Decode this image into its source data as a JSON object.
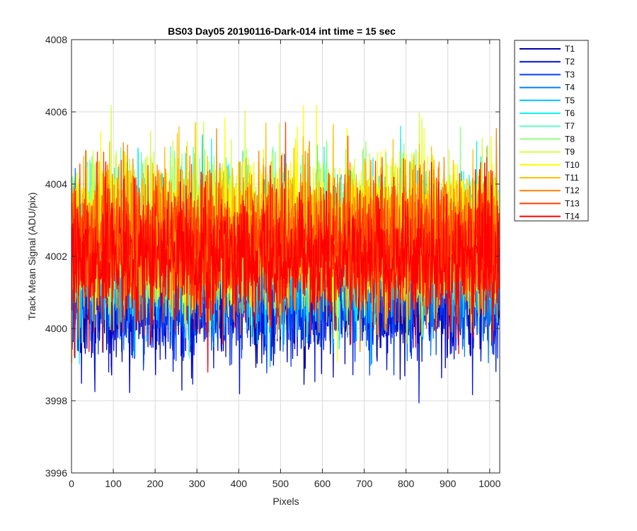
{
  "chart_data": {
    "type": "line",
    "title": "BS03 Day05 20190116-Dark-014 int time = 15 sec",
    "xlabel": "Pixels",
    "ylabel": "Track Mean Signal (ADU/pix)",
    "xlim": [
      0,
      1024
    ],
    "ylim": [
      3996,
      4008
    ],
    "xticks": [
      0,
      100,
      200,
      300,
      400,
      500,
      600,
      700,
      800,
      900,
      1000
    ],
    "yticks": [
      3996,
      3998,
      4000,
      4002,
      4004,
      4006,
      4008
    ],
    "xtick_labels": [
      "0",
      "100",
      "200",
      "300",
      "400",
      "500",
      "600",
      "700",
      "800",
      "900",
      "1000"
    ],
    "ytick_labels": [
      "3996",
      "3998",
      "4000",
      "4002",
      "4004",
      "4006",
      "4008"
    ],
    "grid": true,
    "legend_position": "outside-top-right",
    "series": [
      {
        "name": "T1",
        "color": "#0000a8",
        "mean": 4000.8,
        "noise": 0.85
      },
      {
        "name": "T2",
        "color": "#0010d8",
        "mean": 4000.9,
        "noise": 0.85
      },
      {
        "name": "T3",
        "color": "#0040ff",
        "mean": 4001.3,
        "noise": 0.9
      },
      {
        "name": "T4",
        "color": "#0080ff",
        "mean": 4001.6,
        "noise": 0.95
      },
      {
        "name": "T5",
        "color": "#00c0ff",
        "mean": 4002.0,
        "noise": 1.0
      },
      {
        "name": "T6",
        "color": "#10f0f0",
        "mean": 4002.3,
        "noise": 1.0
      },
      {
        "name": "T7",
        "color": "#60ffc0",
        "mean": 4002.5,
        "noise": 1.0
      },
      {
        "name": "T8",
        "color": "#90ff80",
        "mean": 4002.6,
        "noise": 1.0
      },
      {
        "name": "T9",
        "color": "#d0ff40",
        "mean": 4002.7,
        "noise": 1.0
      },
      {
        "name": "T10",
        "color": "#ffff00",
        "mean": 4002.7,
        "noise": 1.0
      },
      {
        "name": "T11",
        "color": "#ffc000",
        "mean": 4002.6,
        "noise": 1.0
      },
      {
        "name": "T12",
        "color": "#ff8000",
        "mean": 4002.5,
        "noise": 1.0
      },
      {
        "name": "T13",
        "color": "#ff4000",
        "mean": 4002.3,
        "noise": 0.95
      },
      {
        "name": "T14",
        "color": "#ff0000",
        "mean": 4001.9,
        "noise": 0.9
      }
    ],
    "n_points": 1024
  }
}
